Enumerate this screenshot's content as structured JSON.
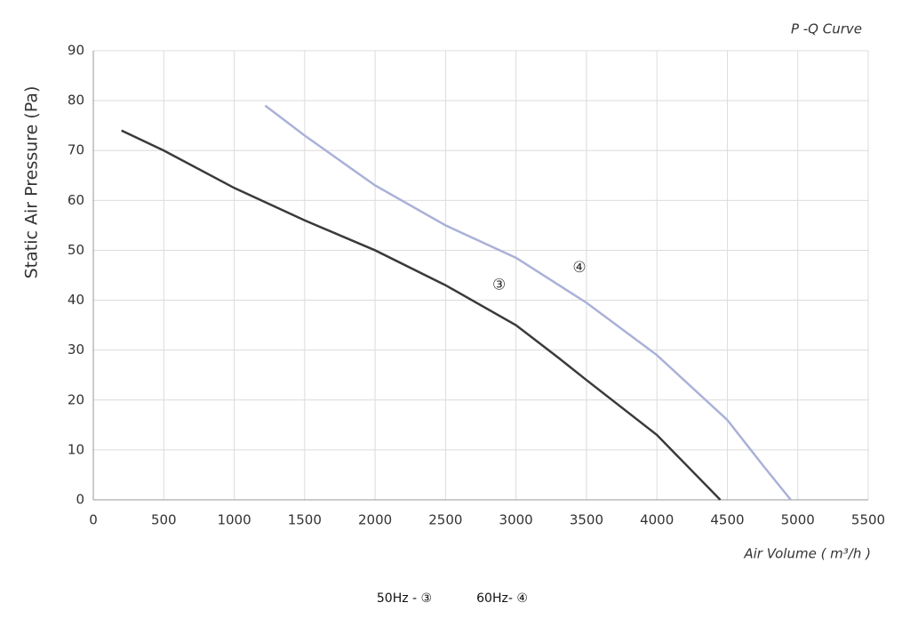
{
  "chart_data": {
    "type": "line",
    "title": "P -Q Curve",
    "x_label": "Air Volume ( m³/h )",
    "y_label": "Static Air Pressure  (Pa)",
    "xlim": [
      0,
      5500
    ],
    "xticks": [
      0,
      500,
      1000,
      1500,
      2000,
      2500,
      3000,
      3500,
      4000,
      4500,
      5000,
      5500
    ],
    "ylim": [
      0,
      90
    ],
    "yticks": [
      0,
      10,
      20,
      30,
      40,
      50,
      60,
      70,
      80,
      90
    ],
    "grid": true,
    "series": [
      {
        "name": "50Hz - ③",
        "color": "#3a3a3a",
        "x": [
          200,
          500,
          1000,
          1500,
          2000,
          2500,
          3000,
          3300,
          3500,
          4000,
          4450
        ],
        "values": [
          74,
          70,
          62.5,
          56,
          50,
          43,
          35,
          28.5,
          24,
          13,
          0
        ]
      },
      {
        "name": "60Hz- ④",
        "color": "#aab1d8",
        "x": [
          1220,
          1500,
          2000,
          2500,
          3000,
          3500,
          4000,
          4500,
          4750,
          4950
        ],
        "values": [
          79,
          73,
          63,
          55,
          48.5,
          39.5,
          29,
          16,
          7,
          0
        ]
      }
    ],
    "annotations": [
      {
        "text": "③",
        "x": 2880,
        "y": 43
      },
      {
        "text": "④",
        "x": 3450,
        "y": 46.5
      }
    ]
  }
}
